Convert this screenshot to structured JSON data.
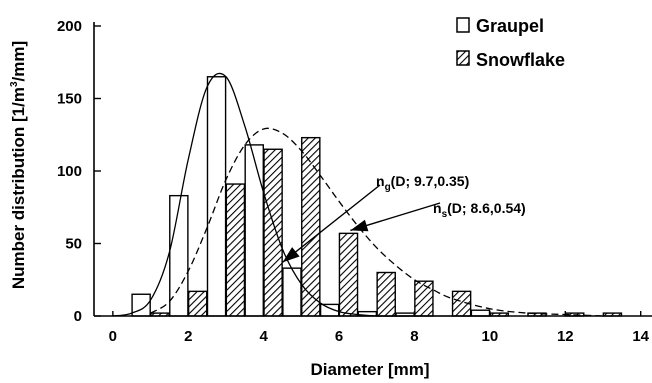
{
  "chart_data": {
    "type": "bar",
    "xlabel": "Diameter  [mm]",
    "ylabel": "Number distribution  [1/m",
    "ylabel_sup": "3",
    "ylabel_tail": "/mm]",
    "xlim": [
      -0.5,
      14.3
    ],
    "ylim": [
      0,
      200
    ],
    "x_ticks": [
      0,
      2,
      4,
      6,
      8,
      10,
      12,
      14
    ],
    "y_ticks": [
      0,
      50,
      100,
      150,
      200
    ],
    "grid": false,
    "legend_position": "top-right",
    "series": [
      {
        "name": "Graupel",
        "style": "open",
        "x": [
          0.75,
          1.75,
          2.75,
          3.75,
          4.75,
          5.75,
          6.75,
          7.75,
          8.75,
          9.75,
          10.75,
          11.75,
          12.75
        ],
        "values": [
          15,
          83,
          165,
          118,
          33,
          8,
          3,
          2,
          0,
          4,
          0,
          0,
          0
        ]
      },
      {
        "name": "Snowflake",
        "style": "hatched",
        "x": [
          1.25,
          2.25,
          3.25,
          4.25,
          5.25,
          6.25,
          7.25,
          8.25,
          9.25,
          10.25,
          11.25,
          12.25,
          13.25
        ],
        "values": [
          2,
          17,
          91,
          115,
          123,
          57,
          30,
          24,
          17,
          2,
          2,
          2,
          2
        ]
      }
    ],
    "curves": [
      {
        "name": "n_g fit",
        "style": "solid",
        "x": [
          0.0,
          0.5,
          1.0,
          1.5,
          2.0,
          2.5,
          3.0,
          3.5,
          4.0,
          4.5,
          5.0,
          5.5,
          6.0,
          6.5,
          7.0,
          8.0,
          9.0,
          10.0
        ],
        "y": [
          0,
          2,
          11,
          44,
          108,
          158,
          165,
          131,
          85,
          46,
          22,
          9,
          3,
          1,
          0,
          0,
          0,
          0
        ]
      },
      {
        "name": "n_s fit",
        "style": "dashed",
        "x": [
          1.0,
          1.5,
          2.0,
          2.5,
          3.0,
          3.5,
          4.0,
          4.5,
          5.0,
          5.5,
          6.0,
          6.5,
          7.0,
          7.5,
          8.0,
          8.5,
          9.0,
          10.0,
          11.0,
          12.0,
          13.0
        ],
        "y": [
          2,
          10,
          31,
          61,
          94,
          118,
          129,
          126,
          114,
          97,
          79,
          62,
          47,
          35,
          25,
          18,
          12,
          5,
          2,
          1,
          0
        ]
      }
    ],
    "annotations": [
      {
        "base": "n",
        "sub": "g",
        "text": "(D; 9.7,0.35)",
        "arrow_to": [
          4.5,
          37
        ]
      },
      {
        "base": "n",
        "sub": "s",
        "text": "(D; 8.6,0.54)",
        "arrow_to": [
          6.3,
          59
        ]
      }
    ]
  }
}
